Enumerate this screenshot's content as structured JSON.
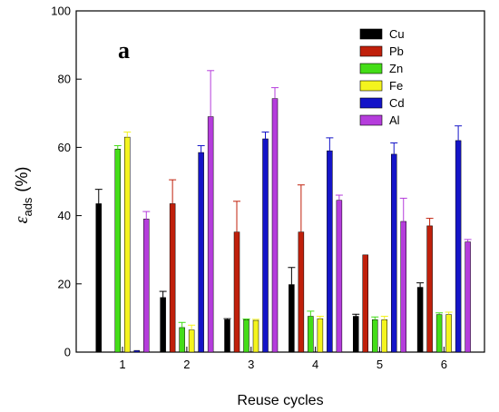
{
  "chart_data": {
    "type": "bar",
    "panel_label": "a",
    "categories": [
      "1",
      "2",
      "3",
      "4",
      "5",
      "6"
    ],
    "xlabel": "Reuse cycles",
    "ylabel": {
      "symbol": "ε",
      "subscript": "ads",
      "unit": "(%)"
    },
    "ylim": [
      0,
      100
    ],
    "yticks": [
      "0",
      "20",
      "40",
      "60",
      "80",
      "100"
    ],
    "grid": false,
    "legend_position": "top-right",
    "series": [
      {
        "name": "Cu",
        "color": "#000000",
        "values": [
          43.5,
          16,
          9.5,
          19.8,
          10.5,
          19
        ],
        "errors": [
          4.2,
          1.8,
          0.3,
          5,
          0.6,
          1.3
        ]
      },
      {
        "name": "Pb",
        "color": "#c0200b",
        "values": [
          0,
          43.5,
          35.2,
          35.2,
          28.5,
          37
        ],
        "errors": [
          0,
          7,
          9,
          13.8,
          0,
          2.2
        ]
      },
      {
        "name": "Zn",
        "color": "#44dd18",
        "values": [
          59.5,
          7.2,
          9.5,
          10.5,
          9.5,
          11
        ],
        "errors": [
          1,
          1.5,
          0.2,
          1.5,
          0.8,
          0.5
        ]
      },
      {
        "name": "Fe",
        "color": "#f4f41e",
        "values": [
          63,
          6.5,
          9.3,
          9.8,
          9.5,
          11
        ],
        "errors": [
          1.5,
          1.4,
          0.3,
          0.7,
          1,
          0.7
        ]
      },
      {
        "name": "Cd",
        "color": "#1414c8",
        "values": [
          0.5,
          58.5,
          62.5,
          59,
          58,
          62
        ],
        "errors": [
          0,
          2,
          2,
          3.8,
          3.3,
          4.3
        ]
      },
      {
        "name": "Al",
        "color": "#b53ddc",
        "values": [
          39,
          69,
          74.3,
          44.5,
          38.3,
          32.3
        ],
        "errors": [
          2.2,
          13.5,
          3.2,
          1.5,
          6.8,
          0.7
        ]
      }
    ]
  }
}
